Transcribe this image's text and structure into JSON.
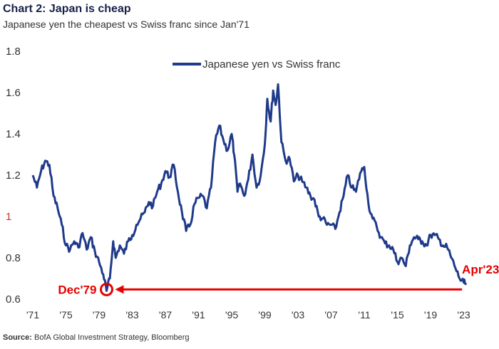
{
  "header": {
    "title": "Chart 2: Japan is cheap",
    "subtitle": "Japanese yen the cheapest vs Swiss franc since Jan'71"
  },
  "source": {
    "label": "Source:",
    "text": "BofA Global Investment Strategy, Bloomberg"
  },
  "colors": {
    "series": "#1f3a8a",
    "annotation": "#e60000",
    "title": "#17214a"
  },
  "chart_data": {
    "type": "line",
    "title": "Chart 2: Japan is cheap",
    "subtitle": "Japanese yen the cheapest vs Swiss franc since Jan'71",
    "ylim": [
      0.6,
      1.8
    ],
    "yticks": [
      0.6,
      0.8,
      1,
      1.2,
      1.4,
      1.6,
      1.8
    ],
    "ytick_labels": [
      "0.6",
      "0.8",
      "1",
      "1.2",
      "1.4",
      "1.6",
      "1.8"
    ],
    "xlim": [
      1971,
      2024.5
    ],
    "xticks": [
      1971,
      1975,
      1979,
      1983,
      1987,
      1991,
      1995,
      1999,
      2003,
      2007,
      2011,
      2015,
      2019,
      2023
    ],
    "xtick_labels": [
      "'71",
      "'75",
      "'79",
      "'83",
      "'87",
      "'91",
      "'95",
      "'99",
      "'03",
      "'07",
      "'11",
      "'15",
      "'19",
      "'23"
    ],
    "grid": false,
    "legend": "top-center",
    "series": [
      {
        "name": "Japanese yen vs Swiss franc",
        "x": [
          1971.0,
          1971.5,
          1972.0,
          1972.5,
          1973.0,
          1973.5,
          1974.0,
          1974.5,
          1975.0,
          1975.5,
          1976.0,
          1976.5,
          1977.0,
          1977.5,
          1978.0,
          1978.5,
          1979.0,
          1979.5,
          1979.9,
          1980.3,
          1980.7,
          1981.0,
          1981.5,
          1982.0,
          1982.5,
          1983.0,
          1983.5,
          1984.0,
          1984.5,
          1985.0,
          1985.5,
          1986.0,
          1986.5,
          1987.0,
          1987.5,
          1988.0,
          1988.5,
          1989.0,
          1989.5,
          1990.0,
          1990.5,
          1991.0,
          1991.5,
          1992.0,
          1992.5,
          1993.0,
          1993.5,
          1994.0,
          1994.5,
          1995.0,
          1995.3,
          1995.7,
          1996.0,
          1996.5,
          1997.0,
          1997.5,
          1998.0,
          1998.5,
          1999.0,
          1999.3,
          1999.7,
          2000.0,
          2000.3,
          2000.6,
          2001.0,
          2001.5,
          2002.0,
          2002.5,
          2003.0,
          2003.5,
          2004.0,
          2004.5,
          2005.0,
          2005.5,
          2006.0,
          2006.5,
          2007.0,
          2007.5,
          2008.0,
          2008.5,
          2009.0,
          2009.5,
          2010.0,
          2010.5,
          2011.0,
          2011.5,
          2012.0,
          2012.5,
          2013.0,
          2013.5,
          2014.0,
          2014.5,
          2015.0,
          2015.5,
          2016.0,
          2016.5,
          2017.0,
          2017.5,
          2018.0,
          2018.5,
          2019.0,
          2019.5,
          2020.0,
          2020.5,
          2021.0,
          2021.5,
          2022.0,
          2022.5,
          2023.0,
          2023.3
        ],
        "values": [
          1.2,
          1.14,
          1.22,
          1.27,
          1.25,
          1.1,
          1.04,
          0.96,
          0.86,
          0.84,
          0.88,
          0.85,
          0.92,
          0.84,
          0.9,
          0.83,
          0.78,
          0.72,
          0.64,
          0.7,
          0.88,
          0.8,
          0.86,
          0.82,
          0.88,
          0.91,
          0.96,
          0.99,
          1.02,
          1.07,
          1.05,
          1.12,
          1.16,
          1.22,
          1.19,
          1.25,
          1.12,
          1.02,
          0.93,
          0.96,
          1.06,
          1.09,
          1.1,
          1.04,
          1.14,
          1.36,
          1.44,
          1.37,
          1.32,
          1.4,
          1.3,
          1.12,
          1.16,
          1.1,
          1.18,
          1.3,
          1.14,
          1.2,
          1.35,
          1.57,
          1.46,
          1.61,
          1.54,
          1.64,
          1.36,
          1.27,
          1.28,
          1.17,
          1.2,
          1.17,
          1.14,
          1.1,
          1.08,
          1.0,
          0.99,
          0.96,
          0.96,
          0.94,
          1.02,
          1.1,
          1.2,
          1.14,
          1.12,
          1.21,
          1.24,
          1.06,
          0.99,
          0.95,
          0.9,
          0.87,
          0.86,
          0.84,
          0.78,
          0.8,
          0.76,
          0.86,
          0.9,
          0.89,
          0.88,
          0.86,
          0.91,
          0.91,
          0.89,
          0.86,
          0.85,
          0.8,
          0.75,
          0.7,
          0.68,
          0.67
        ]
      }
    ],
    "annotations": [
      {
        "label": "Dec'79",
        "x": 1979.9,
        "y": 0.64
      },
      {
        "label": "Apr'23",
        "x": 2023.3,
        "y": 0.64
      }
    ]
  }
}
